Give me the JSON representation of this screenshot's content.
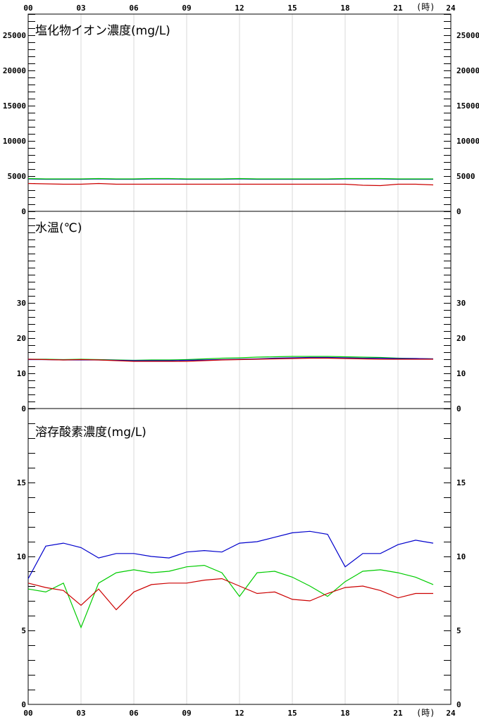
{
  "hour_axis": {
    "labels": [
      "00",
      "03",
      "06",
      "09",
      "12",
      "15",
      "18",
      "21",
      "24"
    ],
    "unit": "(時)"
  },
  "chart_data": [
    {
      "type": "line",
      "title": "塩化物イオン濃度(mg/L)",
      "x": [
        0,
        1,
        2,
        3,
        4,
        5,
        6,
        7,
        8,
        9,
        10,
        11,
        12,
        13,
        14,
        15,
        16,
        17,
        18,
        19,
        20,
        21,
        22,
        23
      ],
      "ylim": [
        0,
        28000
      ],
      "yticks": [
        0,
        5000,
        10000,
        15000,
        20000,
        25000
      ],
      "grid": true,
      "series": [
        {
          "color": "#0000cc",
          "values": [
            4600,
            4550,
            4550,
            4550,
            4600,
            4550,
            4550,
            4600,
            4600,
            4550,
            4550,
            4550,
            4600,
            4550,
            4550,
            4550,
            4550,
            4550,
            4600,
            4600,
            4600,
            4550,
            4550,
            4550
          ]
        },
        {
          "color": "#00cc00",
          "values": [
            4650,
            4600,
            4600,
            4600,
            4650,
            4600,
            4600,
            4650,
            4650,
            4600,
            4600,
            4600,
            4650,
            4600,
            4600,
            4600,
            4600,
            4600,
            4650,
            4650,
            4650,
            4600,
            4600,
            4600
          ]
        },
        {
          "color": "#cc0000",
          "values": [
            3950,
            3900,
            3850,
            3850,
            3950,
            3850,
            3850,
            3850,
            3850,
            3850,
            3850,
            3850,
            3850,
            3850,
            3850,
            3850,
            3850,
            3850,
            3850,
            3700,
            3650,
            3850,
            3850,
            3750
          ]
        }
      ]
    },
    {
      "type": "line",
      "title": "水温(℃)",
      "x": [
        0,
        1,
        2,
        3,
        4,
        5,
        6,
        7,
        8,
        9,
        10,
        11,
        12,
        13,
        14,
        15,
        16,
        17,
        18,
        19,
        20,
        21,
        22,
        23
      ],
      "ylim": [
        0,
        56
      ],
      "yticks": [
        0,
        10,
        20,
        30
      ],
      "grid": true,
      "series": [
        {
          "color": "#00cc00",
          "values": [
            14.0,
            14.0,
            13.9,
            14.0,
            13.9,
            13.8,
            13.7,
            13.8,
            13.8,
            13.9,
            14.1,
            14.3,
            14.4,
            14.6,
            14.7,
            14.8,
            14.8,
            14.8,
            14.7,
            14.6,
            14.5,
            14.3,
            14.2,
            14.1
          ]
        },
        {
          "color": "#0000cc",
          "values": [
            13.9,
            13.9,
            13.8,
            13.8,
            13.8,
            13.7,
            13.6,
            13.6,
            13.6,
            13.7,
            13.8,
            13.9,
            14.0,
            14.1,
            14.3,
            14.4,
            14.5,
            14.5,
            14.4,
            14.3,
            14.3,
            14.2,
            14.2,
            14.1
          ]
        },
        {
          "color": "#cc0000",
          "values": [
            14.0,
            13.9,
            13.8,
            13.9,
            13.8,
            13.6,
            13.4,
            13.4,
            13.4,
            13.4,
            13.6,
            13.8,
            13.9,
            14.0,
            14.1,
            14.2,
            14.3,
            14.3,
            14.2,
            14.1,
            14.0,
            14.0,
            14.0,
            14.0
          ]
        }
      ]
    },
    {
      "type": "line",
      "title": "溶存酸素濃度(mg/L)",
      "x": [
        0,
        1,
        2,
        3,
        4,
        5,
        6,
        7,
        8,
        9,
        10,
        11,
        12,
        13,
        14,
        15,
        16,
        17,
        18,
        19,
        20,
        21,
        22,
        23
      ],
      "ylim": [
        0,
        20
      ],
      "yticks": [
        0,
        5,
        10,
        15
      ],
      "grid": true,
      "series": [
        {
          "color": "#0000cc",
          "values": [
            8.5,
            10.7,
            10.9,
            10.6,
            9.9,
            10.2,
            10.2,
            10.0,
            9.9,
            10.3,
            10.4,
            10.3,
            10.9,
            11.0,
            11.3,
            11.6,
            11.7,
            11.5,
            9.3,
            10.2,
            10.2,
            10.8,
            11.1,
            10.9
          ]
        },
        {
          "color": "#00cc00",
          "values": [
            7.8,
            7.6,
            8.2,
            5.2,
            8.2,
            8.9,
            9.1,
            8.9,
            9.0,
            9.3,
            9.4,
            8.9,
            7.3,
            8.9,
            9.0,
            8.6,
            8.0,
            7.3,
            8.3,
            9.0,
            9.1,
            8.9,
            8.6,
            8.1
          ]
        },
        {
          "color": "#cc0000",
          "values": [
            8.2,
            7.9,
            7.7,
            6.7,
            7.8,
            6.4,
            7.6,
            8.1,
            8.2,
            8.2,
            8.4,
            8.5,
            8.0,
            7.5,
            7.6,
            7.1,
            7.0,
            7.5,
            7.9,
            8.0,
            7.7,
            7.2,
            7.5,
            7.5
          ]
        }
      ]
    }
  ]
}
